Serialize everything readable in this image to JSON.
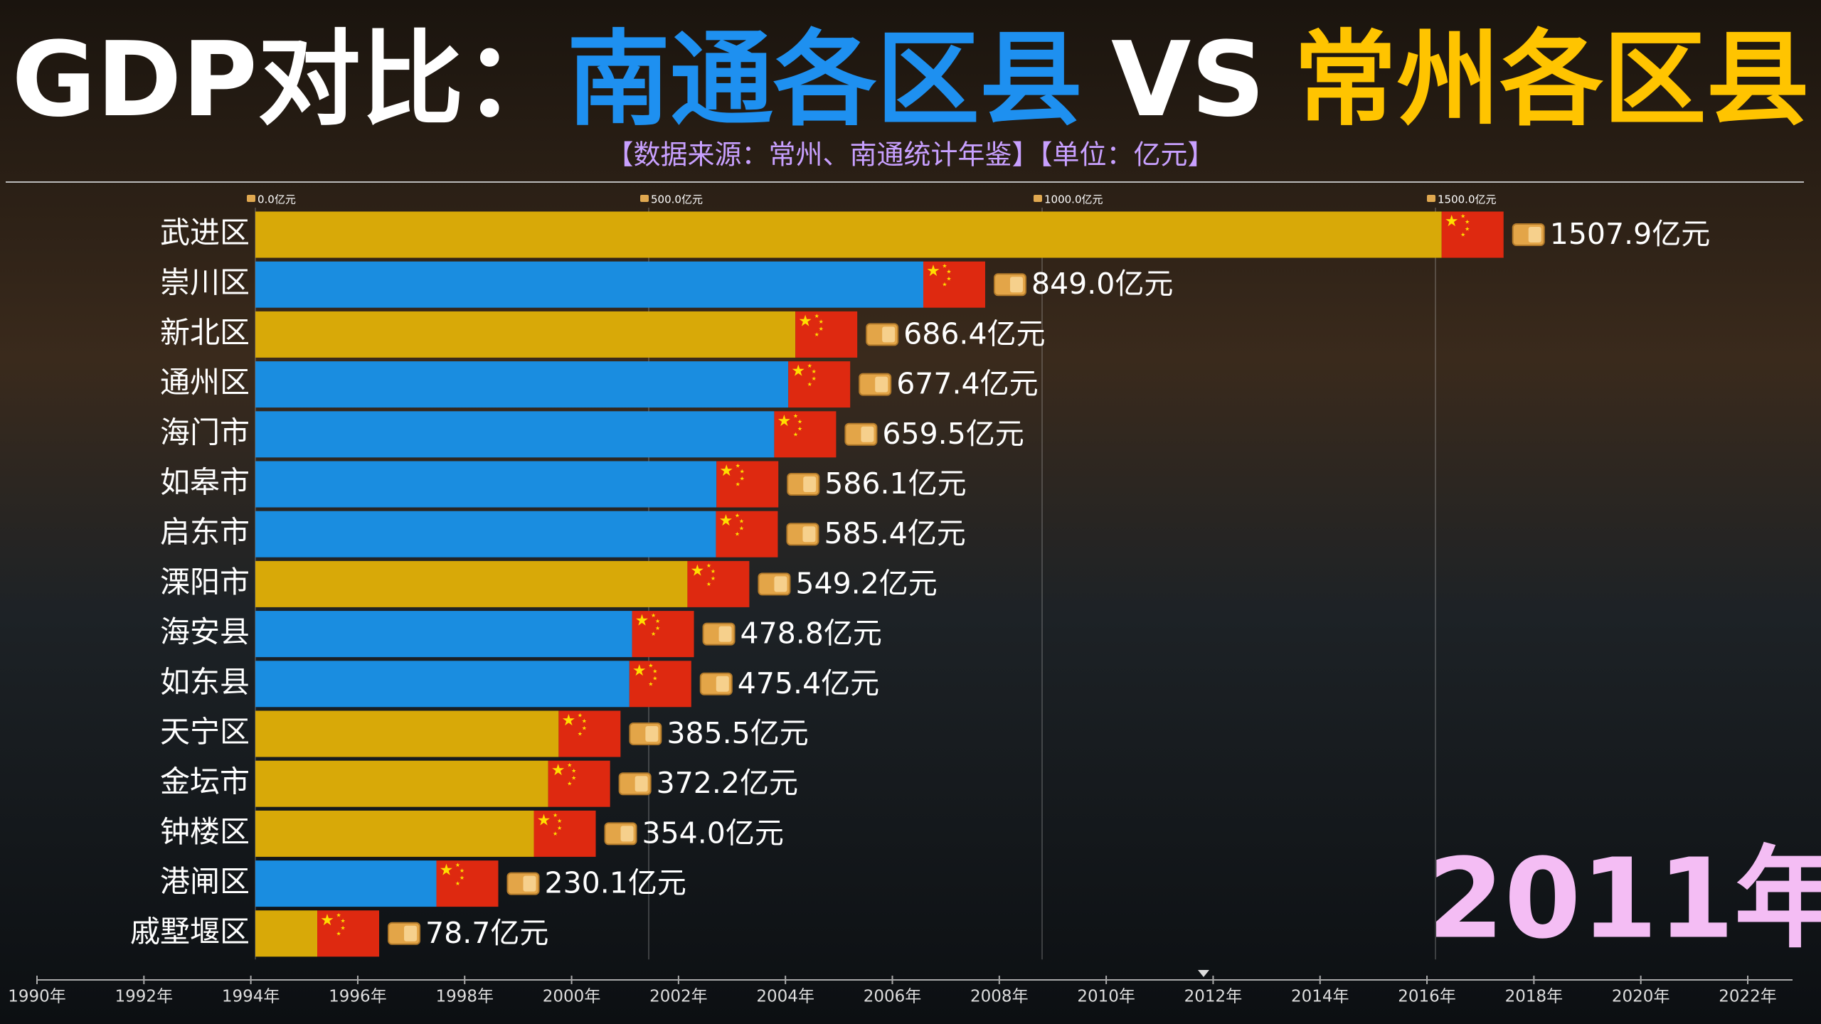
{
  "chart_data": {
    "type": "bar",
    "orientation": "horizontal",
    "title": {
      "prefix": "GDP对比：",
      "left": "南通各区县",
      "vs": "VS",
      "right": "常州各区县"
    },
    "subtitle": "【数据来源：常州、南通统计年鉴】【单位：亿元】",
    "categories": [
      "武进区",
      "崇川区",
      "新北区",
      "通州区",
      "海门市",
      "如皋市",
      "启东市",
      "溧阳市",
      "海安县",
      "如东县",
      "天宁区",
      "金坛市",
      "钟楼区",
      "港闸区",
      "戚墅堰区"
    ],
    "values": [
      1507.9,
      849.0,
      686.4,
      677.4,
      659.5,
      586.1,
      585.4,
      549.2,
      478.8,
      475.4,
      385.5,
      372.2,
      354.0,
      230.1,
      78.7
    ],
    "value_labels": [
      "1507.9亿元",
      "849.0亿元",
      "686.4亿元",
      "677.4亿元",
      "659.5亿元",
      "586.1亿元",
      "585.4亿元",
      "549.2亿元",
      "478.8亿元",
      "475.4亿元",
      "385.5亿元",
      "372.2亿元",
      "354.0亿元",
      "230.1亿元",
      "78.7亿元"
    ],
    "colors": [
      "#d8a908",
      "#1a8de0",
      "#d8a908",
      "#1a8de0",
      "#1a8de0",
      "#1a8de0",
      "#1a8de0",
      "#d8a908",
      "#1a8de0",
      "#1a8de0",
      "#d8a908",
      "#d8a908",
      "#d8a908",
      "#1a8de0",
      "#d8a908"
    ],
    "xlim": [
      0,
      1980
    ],
    "xticks": [
      {
        "value": 0,
        "label": "0.0亿元"
      },
      {
        "value": 500,
        "label": "500.0亿元"
      },
      {
        "value": 1000,
        "label": "1000.0亿元"
      },
      {
        "value": 1500,
        "label": "1500.0亿元"
      }
    ],
    "grid": true,
    "timeline": {
      "labels": [
        "1990年",
        "1992年",
        "1994年",
        "1996年",
        "1998年",
        "2000年",
        "2002年",
        "2004年",
        "2006年",
        "2008年",
        "2010年",
        "2012年",
        "2014年",
        "2016年",
        "2018年",
        "2020年",
        "2022年"
      ],
      "current": "2011年"
    }
  }
}
